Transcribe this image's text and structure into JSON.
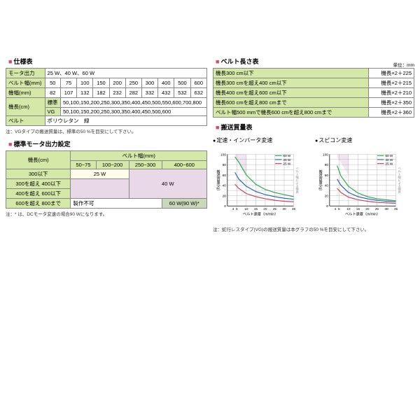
{
  "spec": {
    "title": "仕様表",
    "rows": [
      {
        "label": "モータ出力",
        "value": "25 W、40 W、60 W"
      },
      {
        "label": "ベルト幅(mm)",
        "cells": [
          "50",
          "75",
          "100",
          "150",
          "200",
          "250",
          "300",
          "400",
          "500",
          "600"
        ]
      },
      {
        "label": "機幅(mm)",
        "cells": [
          "82",
          "107",
          "132",
          "182",
          "232",
          "282",
          "332",
          "432",
          "532",
          "632"
        ]
      },
      {
        "label": "機長(cm)",
        "sub1": "標準",
        "sub1val": "50,100,150,200,250,300,350,400,450,500,550,600,700,800",
        "sub2": "VG",
        "sub2val": "50,100,150,200,250,300,350,400,450,500,600"
      },
      {
        "label": "ベルト",
        "value": "ポリウレタン　緑"
      }
    ],
    "note": "注：VGタイプの搬送質量は、標準の50 %を目安にして下さい。"
  },
  "motor": {
    "title": "標準モータ出力設定",
    "rowHeader": "機長(cm)",
    "colHeader": "ベルト幅(mm)",
    "cols": [
      "50~75",
      "100~200",
      "250~300",
      "400~600"
    ],
    "rows": [
      "300以下",
      "300を超え 400以下",
      "400を超え 600以下",
      "600を超え 800まで"
    ],
    "w25": "25 W",
    "w40": "40 W",
    "w60": "60 W(90 W)*",
    "impossible": "製作不可",
    "note": "注：* は、DCモータ変速の場合90 Wになります。"
  },
  "length": {
    "title": "ベルト長さ表",
    "unit": "単位：mm",
    "rows": [
      {
        "label": "機長300 cm以下",
        "value": "機長×2＋225"
      },
      {
        "label": "機長300 cmを超え400 cm以下",
        "value": "機長×2＋215"
      },
      {
        "label": "機長400 cmを超え600 cm以下",
        "value": "機長×2＋210"
      },
      {
        "label": "機長600 cmを超え800 cmまで",
        "value": "機長×2＋350"
      },
      {
        "label": "ベルト幅500 mmで機長600 cmを超え800 cmまで",
        "value": "機長×2＋360"
      }
    ]
  },
  "capacity": {
    "title": "搬送質量表",
    "chart1": {
      "title": "定速・インバータ変速",
      "ymax": 100,
      "xlabel": "ベルト速度（m/min）",
      "ylabel": "搬送質量(kg)"
    },
    "chart2": {
      "title": "スピコン変速",
      "ymax": 100,
      "xlabel": "ベルト速度（m/min）",
      "ylabel": "搬送質量(kg)"
    },
    "legend": [
      {
        "label": "60 W",
        "color": "#2aa050"
      },
      {
        "label": "40 W",
        "color": "#2060b0"
      },
      {
        "label": "25 W",
        "color": "#c04060"
      }
    ],
    "note": "注：蛇行レスタイプ(VG)の搬送質量は本グラフの50 %を目安にして下さい。",
    "series1_60": [
      [
        4,
        95
      ],
      [
        6,
        85
      ],
      [
        10,
        60
      ],
      [
        15,
        42
      ],
      [
        20,
        32
      ],
      [
        25,
        26
      ],
      [
        30,
        22
      ],
      [
        35,
        18
      ]
    ],
    "series1_40": [
      [
        4,
        65
      ],
      [
        6,
        52
      ],
      [
        10,
        38
      ],
      [
        15,
        28
      ],
      [
        20,
        22
      ],
      [
        25,
        18
      ],
      [
        30,
        15
      ],
      [
        35,
        13
      ]
    ],
    "series1_25": [
      [
        4,
        42
      ],
      [
        6,
        34
      ],
      [
        10,
        24
      ],
      [
        15,
        18
      ],
      [
        20,
        14
      ],
      [
        25,
        11
      ],
      [
        30,
        9
      ],
      [
        35,
        8
      ]
    ],
    "series2_60": [
      [
        4,
        78
      ],
      [
        6,
        58
      ],
      [
        10,
        38
      ],
      [
        15,
        25
      ],
      [
        20,
        18
      ],
      [
        25,
        14
      ],
      [
        30,
        12
      ],
      [
        35,
        10
      ]
    ],
    "series2_40": [
      [
        4,
        52
      ],
      [
        6,
        40
      ],
      [
        10,
        26
      ],
      [
        15,
        18
      ],
      [
        20,
        14
      ],
      [
        25,
        11
      ],
      [
        30,
        9
      ],
      [
        35,
        8
      ]
    ],
    "series2_25": [
      [
        4,
        34
      ],
      [
        6,
        26
      ],
      [
        10,
        17
      ],
      [
        15,
        12
      ],
      [
        20,
        9
      ],
      [
        25,
        7
      ],
      [
        30,
        6
      ],
      [
        35,
        5
      ]
    ],
    "colors": {
      "c60": "#2aa050",
      "c40": "#2060b0",
      "c25": "#c04060",
      "grid": "#888",
      "axis": "#000",
      "dashArea": "#d0a8d0"
    }
  }
}
